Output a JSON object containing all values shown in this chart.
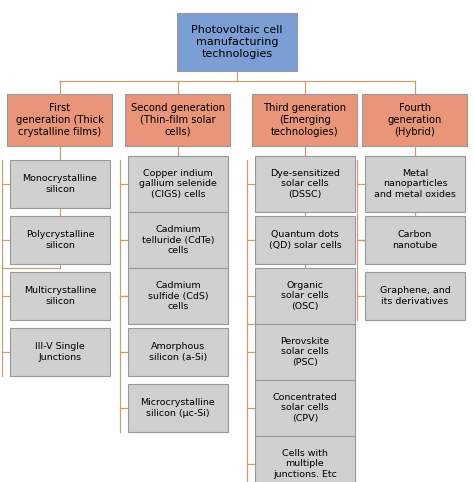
{
  "title": "Photovoltaic cell\nmanufacturing\ntechnologies",
  "title_color": "#7b9fd4",
  "gen_color": "#e8957a",
  "child_color": "#d0d0d0",
  "line_color": "#c8a070",
  "background_color": "#ffffff",
  "generations": [
    {
      "label": "First\ngeneration (Thick\ncrystalline films)",
      "col": 0,
      "children": [
        "Monocrystalline\nsilicon",
        "Polycrystalline\nsilicon",
        "Multicrystalline\nsilicon",
        "III-V Single\nJunctions"
      ]
    },
    {
      "label": "Second generation\n(Thin-film solar\ncells)",
      "col": 1,
      "children": [
        "Copper indium\ngallium selenide\n(CIGS) cells",
        "Cadmium\ntelluride (CdTe)\ncells",
        "Cadmium\nsulfide (CdS)\ncells",
        "Amorphous\nsilicon (a-Si)",
        "Microcrystalline\nsilicon (μc-Si)"
      ]
    },
    {
      "label": "Third generation\n(Emerging\ntechnologies)",
      "col": 2,
      "children": [
        "Dye-sensitized\nsolar cells\n(DSSC)",
        "Quantum dots\n(QD) solar cells",
        "Organic\nsolar cells\n(OSC)",
        "Perovskite\nsolar cells\n(PSC)",
        "Concentrated\nsolar cells\n(CPV)",
        "Cells with\nmultiple\njunctions. Etc"
      ]
    },
    {
      "label": "Fourth\ngeneration\n(Hybrid)",
      "col": 3,
      "children": [
        "Metal\nnanoparticles\nand metal oxides",
        "Carbon\nnanotube",
        "Graphene, and\nits derivatives"
      ]
    }
  ]
}
